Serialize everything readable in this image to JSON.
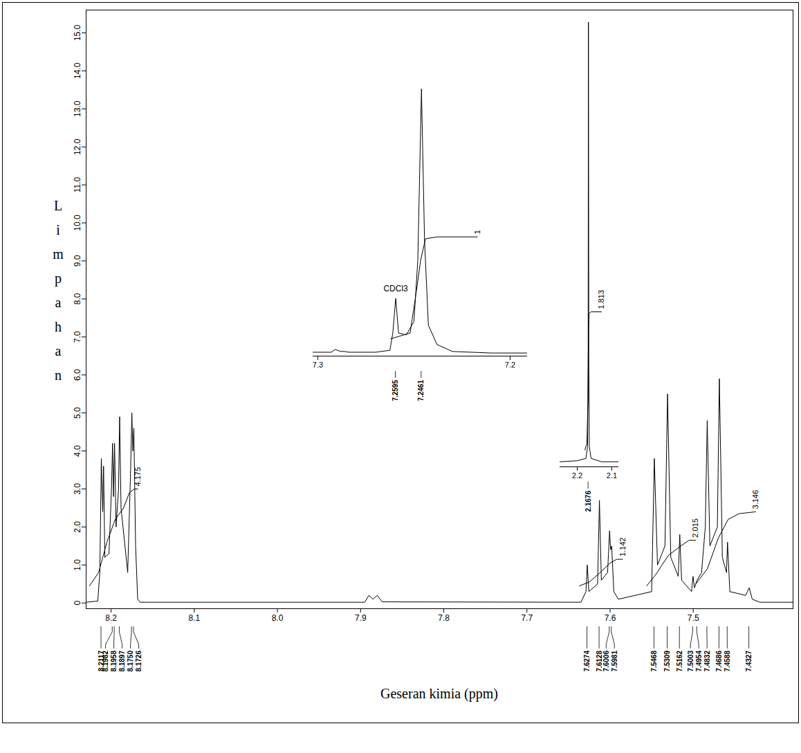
{
  "chart_data": {
    "type": "line",
    "x_label": "Geseran kimia (ppm)",
    "y_label": "Limpahan",
    "color": "#000000",
    "grid": false,
    "xlim": [
      8.23,
      7.38
    ],
    "ylim": [
      -0.15,
      15.6
    ],
    "xticks": [
      8.2,
      8.1,
      {
        "value": 8,
        "label": "8.0"
      },
      7.9,
      7.8,
      7.7,
      7.6,
      7.5
    ],
    "yticks": [
      0,
      {
        "value": 1,
        "label": "1.0"
      },
      {
        "value": 2,
        "label": "2.0"
      },
      {
        "value": 3,
        "label": "3.0"
      },
      {
        "value": 4,
        "label": "4.0"
      },
      {
        "value": 5,
        "label": "5.0"
      },
      {
        "value": 6,
        "label": "6.0"
      },
      {
        "value": 7,
        "label": "7.0"
      },
      {
        "value": 8,
        "label": "8.0"
      },
      {
        "value": 9,
        "label": "9.0"
      },
      {
        "value": 10,
        "label": "10.0"
      },
      {
        "value": 11,
        "label": "11.0"
      },
      {
        "value": 12,
        "label": "12.0"
      },
      {
        "value": 13,
        "label": "13.0"
      },
      {
        "value": 14,
        "label": "14.0"
      },
      {
        "value": 15,
        "label": "15.0"
      }
    ],
    "x": [
      8.23,
      8.216,
      8.2135,
      8.2117,
      8.21,
      8.209,
      8.2075,
      8.2025,
      8.1995,
      8.1982,
      8.197,
      8.1958,
      8.194,
      8.191,
      8.1897,
      8.188,
      8.18,
      8.1765,
      8.175,
      8.1738,
      8.1726,
      8.1705,
      8.168,
      8.165,
      7.895,
      7.89,
      7.885,
      7.88,
      7.874,
      7.635,
      7.629,
      7.6274,
      7.6255,
      7.615,
      7.6128,
      7.6105,
      7.603,
      7.6006,
      7.5993,
      7.5981,
      7.5955,
      7.59,
      7.55,
      7.5468,
      7.543,
      7.534,
      7.5309,
      7.527,
      7.518,
      7.5162,
      7.514,
      7.502,
      7.5003,
      7.4985,
      7.4954,
      7.49,
      7.4855,
      7.4832,
      7.48,
      7.471,
      7.4686,
      7.465,
      7.46,
      7.4588,
      7.456,
      7.437,
      7.4327,
      7.429,
      7.42,
      7.38
    ],
    "values": [
      0.02,
      0.05,
      0.8,
      3.8,
      2.4,
      3.6,
      1.2,
      1.3,
      3.0,
      4.2,
      2.8,
      4.2,
      2.0,
      3.0,
      4.9,
      2.5,
      0.8,
      3.5,
      5.0,
      4.0,
      4.6,
      1.5,
      0.1,
      0.02,
      0.02,
      0.2,
      0.1,
      0.2,
      0.03,
      0.02,
      0.3,
      1.0,
      0.3,
      0.5,
      2.7,
      0.6,
      0.8,
      1.9,
      1.4,
      1.5,
      0.3,
      0.1,
      0.3,
      3.8,
      1.0,
      1.5,
      5.5,
      1.2,
      0.7,
      1.8,
      0.6,
      0.3,
      0.7,
      0.4,
      0.6,
      0.8,
      2.0,
      4.8,
      1.5,
      2.0,
      5.9,
      1.2,
      0.8,
      1.6,
      0.3,
      0.2,
      0.4,
      0.1,
      0.02,
      0.02
    ],
    "peaks": [
      {
        "value": 8.2117,
        "label": "8.2117"
      },
      {
        "value": 8.1982,
        "label": "8.1982"
      },
      {
        "value": 8.1958,
        "label": "8.1958"
      },
      {
        "value": 8.1897,
        "label": "8.1897"
      },
      {
        "value": 8.175,
        "label": "8.1750"
      },
      {
        "value": 8.1726,
        "label": "8.1726"
      },
      {
        "value": 7.6274,
        "label": "7.6274"
      },
      {
        "value": 7.6128,
        "label": "7.6128"
      },
      {
        "value": 7.6006,
        "label": "7.6006"
      },
      {
        "value": 7.5981,
        "label": "7.5981"
      },
      {
        "value": 7.5468,
        "label": "7.5468"
      },
      {
        "value": 7.5309,
        "label": "7.5309"
      },
      {
        "value": 7.5162,
        "label": "7.5162"
      },
      {
        "value": 7.5003,
        "label": "7.5003"
      },
      {
        "value": 7.4954,
        "label": "7.4954"
      },
      {
        "value": 7.4832,
        "label": "7.4832"
      },
      {
        "value": 7.4686,
        "label": "7.4686"
      },
      {
        "value": 7.4588,
        "label": "7.4588"
      },
      {
        "value": 7.4327,
        "label": "7.4327"
      }
    ],
    "integrals": [
      {
        "x": [
          8.226,
          8.215,
          8.205,
          8.195,
          8.185,
          8.178,
          8.172,
          8.168
        ],
        "y": [
          0.45,
          0.8,
          1.6,
          2.2,
          2.5,
          2.9,
          3.0,
          3.0
        ],
        "value": 4.175
      },
      {
        "x": [
          7.637,
          7.625,
          7.612,
          7.6,
          7.592,
          7.585
        ],
        "y": [
          0.45,
          0.55,
          0.8,
          1.05,
          1.15,
          1.15
        ],
        "value": 1.142
      },
      {
        "x": [
          7.556,
          7.545,
          7.53,
          7.515,
          7.505,
          7.497
        ],
        "y": [
          0.45,
          0.75,
          1.25,
          1.5,
          1.65,
          1.65
        ],
        "value": 2.015
      },
      {
        "x": [
          7.497,
          7.483,
          7.47,
          7.458,
          7.445,
          7.425
        ],
        "y": [
          0.5,
          0.9,
          1.7,
          2.2,
          2.35,
          2.4
        ],
        "value": 3.146
      }
    ],
    "insets": [
      {
        "type": "line",
        "color": "#000000",
        "tick_labels": "x",
        "xlim": [
          7.3025,
          7.191
        ],
        "ylim": [
          0,
          7.2
        ],
        "xticks": [
          7.3,
          7.2
        ],
        "x": [
          7.3025,
          7.293,
          7.291,
          7.288,
          7.286,
          7.284,
          7.27,
          7.2625,
          7.261,
          7.2595,
          7.258,
          7.254,
          7.25,
          7.248,
          7.2461,
          7.2445,
          7.2425,
          7.238,
          7.23,
          7.21,
          7.191
        ],
        "values": [
          0.1,
          0.1,
          0.17,
          0.12,
          0.12,
          0.1,
          0.1,
          0.15,
          0.6,
          1.5,
          0.6,
          0.55,
          0.9,
          2.5,
          6.95,
          3.0,
          0.8,
          0.3,
          0.12,
          0.08,
          0.08
        ],
        "peaks": [
          {
            "value": 7.2595,
            "label": "7.2595"
          },
          {
            "value": 7.2461,
            "label": "7.2461"
          }
        ],
        "integrals": [
          {
            "x": [
              7.262,
              7.252,
              7.249,
              7.2465,
              7.244,
              7.238,
              7.217
            ],
            "y": [
              0.45,
              0.6,
              1.6,
              2.5,
              3.05,
              3.1,
              3.1
            ],
            "value": 1
          }
        ],
        "annotations": [
          {
            "text": "CDCl3",
            "peak": 7.2595
          }
        ]
      },
      {
        "type": "line",
        "color": "#000000",
        "tick_labels": "x",
        "xlim": [
          2.25,
          2.08
        ],
        "ylim": [
          0,
          13.6
        ],
        "xticks": [
          2.2,
          2.1
        ],
        "x": [
          2.25,
          2.2,
          2.175,
          2.17,
          2.1685,
          2.1676,
          2.1665,
          2.165,
          2.16,
          2.13,
          2.08
        ],
        "values": [
          0.15,
          0.18,
          0.25,
          0.6,
          3.0,
          13.2,
          3.0,
          0.6,
          0.25,
          0.15,
          0.15
        ],
        "peaks": [
          {
            "value": 2.1676,
            "label": "2.1676"
          }
        ],
        "integrals": [
          {
            "x": [
              2.178,
              2.172,
              2.169,
              2.1676,
              2.166,
              2.16,
              2.13
            ],
            "y": [
              0.5,
              0.7,
              2.0,
              4.0,
              4.55,
              4.6,
              4.6
            ],
            "value": 1.813
          }
        ],
        "annotations": []
      }
    ]
  }
}
